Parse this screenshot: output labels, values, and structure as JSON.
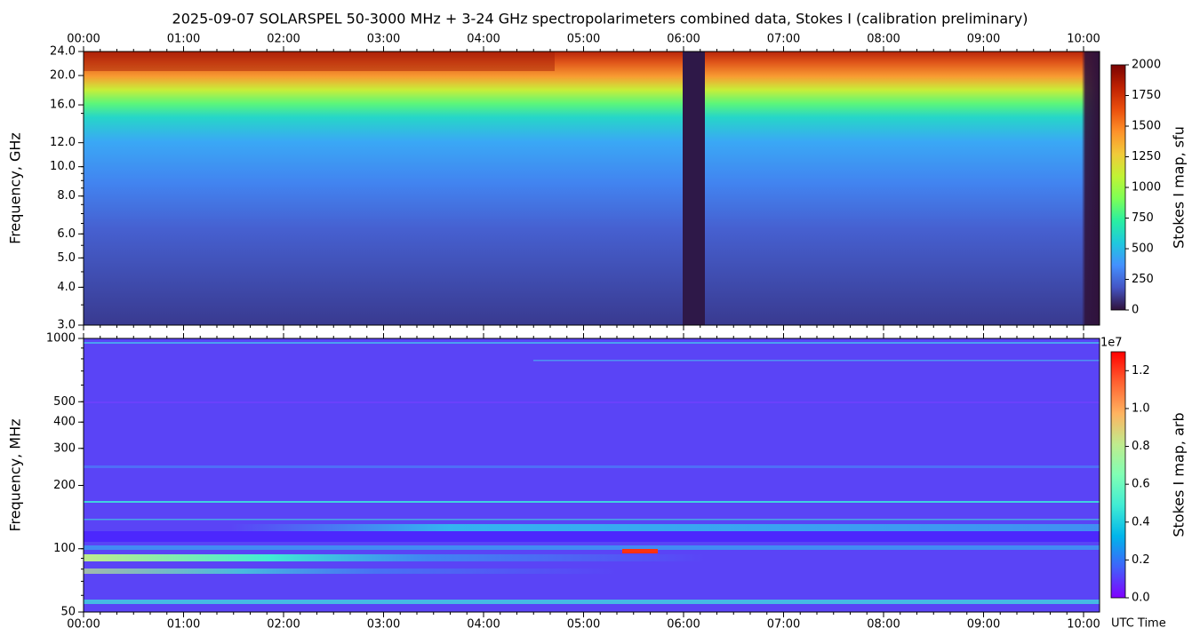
{
  "chart_data": [
    {
      "type": "heatmap",
      "title": "2025-09-07  SOLARSPEL  50-3000 MHz  +  3-24 GHz  spectropolarimeters combined data,  Stokes I  (calibration preliminary)",
      "y_label": "Frequency, GHz",
      "xaxis_position": "top",
      "xlim": [
        0,
        10.16
      ],
      "xticks": [
        {
          "value": 0,
          "label": "00:00"
        },
        {
          "value": 1,
          "label": "01:00"
        },
        {
          "value": 2,
          "label": "02:00"
        },
        {
          "value": 3,
          "label": "03:00"
        },
        {
          "value": 4,
          "label": "04:00"
        },
        {
          "value": 5,
          "label": "05:00"
        },
        {
          "value": 6,
          "label": "06:00"
        },
        {
          "value": 7,
          "label": "07:00"
        },
        {
          "value": 8,
          "label": "08:00"
        },
        {
          "value": 9,
          "label": "09:00"
        },
        {
          "value": 10,
          "label": "10:00"
        }
      ],
      "log_y": true,
      "ylim": [
        3,
        24
      ],
      "yticks": [
        {
          "value": 3,
          "label": "3.0"
        },
        {
          "value": 4,
          "label": "4.0"
        },
        {
          "value": 5,
          "label": "5.0"
        },
        {
          "value": 6,
          "label": "6.0"
        },
        {
          "value": 8,
          "label": "8.0"
        },
        {
          "value": 10,
          "label": "10.0"
        },
        {
          "value": 12,
          "label": "12.0"
        },
        {
          "value": 16,
          "label": "16.0"
        },
        {
          "value": 20,
          "label": "20.0"
        },
        {
          "value": 24,
          "label": "24.0"
        }
      ],
      "colorbar_label": "Stokes I map, sfu",
      "colorbar_lim": [
        0,
        2000
      ],
      "colorbar_ticks": [
        0,
        250,
        500,
        750,
        1000,
        1250,
        1500,
        1750,
        2000
      ],
      "colormap": [
        "#30123b",
        "#4454c4",
        "#4490fe",
        "#1fc8de",
        "#29efa2",
        "#7dff56",
        "#c1f334",
        "#f1ca3a",
        "#fe922a",
        "#ea4f0d",
        "#be2102",
        "#7a0403"
      ]
    },
    {
      "type": "heatmap",
      "x_label": "UTC Time",
      "xaxis_position": "bottom",
      "xlim": [
        0,
        10.16
      ],
      "xticks": [
        {
          "value": 0,
          "label": "00:00"
        },
        {
          "value": 1,
          "label": "01:00"
        },
        {
          "value": 2,
          "label": "02:00"
        },
        {
          "value": 3,
          "label": "03:00"
        },
        {
          "value": 4,
          "label": "04:00"
        },
        {
          "value": 5,
          "label": "05:00"
        },
        {
          "value": 6,
          "label": "06:00"
        },
        {
          "value": 7,
          "label": "07:00"
        },
        {
          "value": 8,
          "label": "08:00"
        },
        {
          "value": 9,
          "label": "09:00"
        },
        {
          "value": 10,
          "label": "10:00"
        }
      ],
      "y_label": "Frequency, MHz",
      "log_y": true,
      "ylim": [
        50,
        1000
      ],
      "yticks": [
        50,
        100,
        200,
        300,
        400,
        500,
        1000
      ],
      "colorbar_label": "Stokes I map, arb",
      "colorbar_offset": "1e7",
      "colorbar_lim": [
        0,
        1.3
      ],
      "colorbar_ticks": [
        {
          "value": 0,
          "label": "0.0"
        },
        0.2,
        0.4,
        0.6,
        0.8,
        {
          "value": 1,
          "label": "1.0"
        },
        1.2
      ],
      "colormap": [
        "#8000ff",
        "#4062fa",
        "#00b5eb",
        "#40ecd4",
        "#80ffb4",
        "#c0eb8d",
        "#ffb360",
        "#ff6231",
        "#ff0000"
      ]
    }
  ]
}
